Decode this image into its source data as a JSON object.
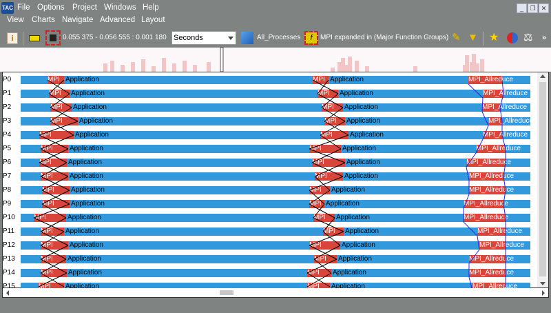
{
  "app": {
    "logo": "TAC"
  },
  "menu_row1": [
    "File",
    "Options",
    "Project",
    "Windows",
    "Help"
  ],
  "menu_row2": [
    "View",
    "Charts",
    "Navigate",
    "Advanced",
    "Layout"
  ],
  "window_controls": {
    "minimize": "_",
    "restore": "❐",
    "close": "✕"
  },
  "toolbar": {
    "time_range": "0.055 375 - 0.056 555 : 0.001 180",
    "unit_select": "Seconds",
    "process_group": "All_Processes",
    "function_group": "MPI expanded in (Major Function Groups)",
    "icons": [
      "info-icon",
      "ruler-icon",
      "export-icon",
      "process-group-icon",
      "function-group-icon",
      "tag-icon",
      "filter-icon",
      "star-icon",
      "color-icon",
      "balance-icon"
    ],
    "overflow": "»"
  },
  "colors": {
    "application": "#3399dd",
    "mpi": "#d8453a",
    "background": "#7f8381",
    "message_line": "#000000",
    "collective_line": "#2222ee"
  },
  "processes": [
    "P0",
    "P1",
    "P2",
    "P3",
    "P4",
    "P5",
    "P6",
    "P7",
    "P8",
    "P9",
    "P10",
    "P11",
    "P12",
    "P13",
    "P14",
    "P15"
  ],
  "labels": {
    "application": "Application",
    "mpi": "MPI_Allreduce",
    "mpi_short": "MPI"
  }
}
